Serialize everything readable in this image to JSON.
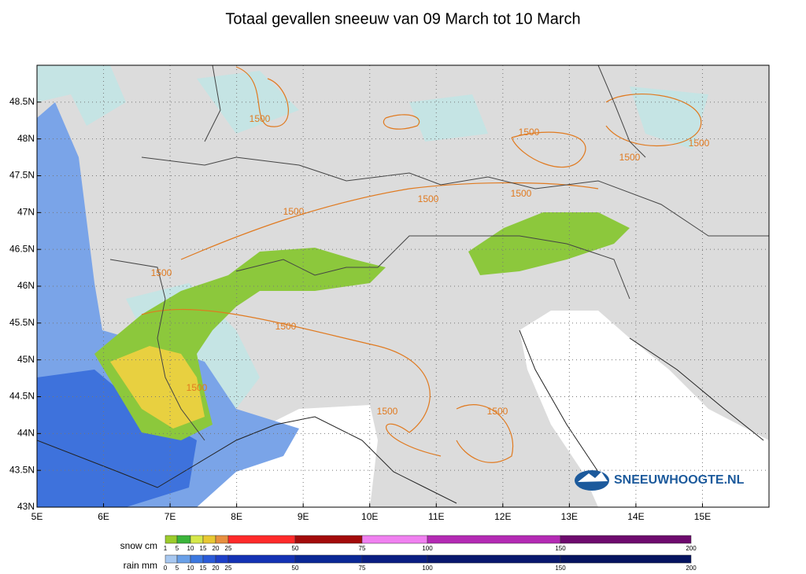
{
  "title": "Totaal gevallen sneeuw van 09 March tot 10 March",
  "map": {
    "xlim": [
      5,
      16
    ],
    "ylim": [
      43,
      49
    ],
    "grid": true,
    "xticks": [
      {
        "value": 5,
        "label": "5E"
      },
      {
        "value": 6,
        "label": "6E"
      },
      {
        "value": 7,
        "label": "7E"
      },
      {
        "value": 8,
        "label": "8E"
      },
      {
        "value": 9,
        "label": "9E"
      },
      {
        "value": 10,
        "label": "10E"
      },
      {
        "value": 11,
        "label": "11E"
      },
      {
        "value": 12,
        "label": "12E"
      },
      {
        "value": 13,
        "label": "13E"
      },
      {
        "value": 14,
        "label": "14E"
      },
      {
        "value": 15,
        "label": "15E"
      }
    ],
    "yticks": [
      {
        "value": 43,
        "label": "43N"
      },
      {
        "value": 43.5,
        "label": "43.5N"
      },
      {
        "value": 44,
        "label": "44N"
      },
      {
        "value": 44.5,
        "label": "44.5N"
      },
      {
        "value": 45,
        "label": "45N"
      },
      {
        "value": 45.5,
        "label": "45.5N"
      },
      {
        "value": 46,
        "label": "46N"
      },
      {
        "value": 46.5,
        "label": "46.5N"
      },
      {
        "value": 47,
        "label": "47N"
      },
      {
        "value": 47.5,
        "label": "47.5N"
      },
      {
        "value": 48,
        "label": "48N"
      },
      {
        "value": 48.5,
        "label": "48.5N"
      }
    ],
    "contour_labels": [
      "1500",
      "1500",
      "1500",
      "1500",
      "1500",
      "1500",
      "1500",
      "1500",
      "1500",
      "1500",
      "1500",
      "1500"
    ]
  },
  "logo": "SNEEUWHOOGTE.NL",
  "legend": {
    "snow": {
      "label": "snow cm",
      "ticks": [
        1,
        5,
        10,
        15,
        20,
        25,
        50,
        75,
        100,
        150,
        200
      ],
      "colors": [
        "#9ccc2c",
        "#3bb53b",
        "#d6e84a",
        "#e8c832",
        "#e89040",
        "#ff2a2a",
        "#a30a0a",
        "#f080f0",
        "#b42ab4",
        "#6e0a6e"
      ]
    },
    "rain": {
      "label": "rain mm",
      "ticks": [
        0,
        5,
        10,
        15,
        20,
        25,
        50,
        75,
        100,
        150,
        200
      ],
      "colors": [
        "#a8c8f0",
        "#6aa0e8",
        "#3c78e0",
        "#2a5ad8",
        "#1e40c8",
        "#1432b4",
        "#0a2896",
        "#0a1e82",
        "#08186e",
        "#061460"
      ]
    }
  }
}
